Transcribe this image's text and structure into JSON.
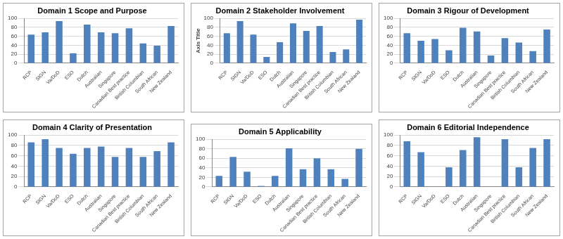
{
  "chart_data": [
    {
      "type": "bar",
      "title": "Domain 1 Scope and Purpose",
      "categories": [
        "RCP",
        "SIGN",
        "Va/DoD",
        "ESO",
        "Dutch",
        "Australian",
        "Singapore",
        "Canadian Best practice",
        "British Columbian",
        "South African",
        "New Zealand"
      ],
      "values": [
        64,
        69,
        94,
        22,
        86,
        69,
        67,
        78,
        44,
        39,
        83
      ],
      "color": "#4f81bd",
      "ylim": [
        0,
        100
      ],
      "yticks": [
        0,
        20,
        40,
        60,
        80,
        100
      ],
      "grid": true
    },
    {
      "type": "bar",
      "title": "Domain 2 Stakeholder Involvement",
      "ylabel": "Axis Title",
      "categories": [
        "RCP",
        "SIGN",
        "Va/DoD",
        "ESO",
        "Dutch",
        "Australian",
        "Singapore",
        "Canadian Best practice",
        "British Columbian",
        "South African",
        "New Zealand"
      ],
      "values": [
        67,
        94,
        64,
        14,
        47,
        89,
        72,
        83,
        25,
        31,
        97
      ],
      "color": "#4f81bd",
      "ylim": [
        0,
        100
      ],
      "yticks": [
        0,
        20,
        40,
        60,
        80,
        100
      ],
      "grid": true
    },
    {
      "type": "bar",
      "title": "Domain 3 Rigour of Development",
      "categories": [
        "RCP",
        "SIGN",
        "Va/DoD",
        "ESO",
        "Dutch",
        "Australian",
        "Singapore",
        "Canadian Best practice",
        "British Columbian",
        "South African",
        "New Zealand"
      ],
      "values": [
        67,
        50,
        54,
        29,
        79,
        71,
        17,
        56,
        46,
        27,
        75
      ],
      "color": "#4f81bd",
      "ylim": [
        0,
        100
      ],
      "yticks": [
        0,
        20,
        40,
        60,
        80,
        100
      ],
      "grid": true
    },
    {
      "type": "bar",
      "title": "Domain 4 Clarity of Presentation",
      "categories": [
        "RCP",
        "SIGN",
        "Va/DoD",
        "ESO",
        "Dutch",
        "Australian",
        "Singapore",
        "Canadian Best practice",
        "British Columbian",
        "South African",
        "New Zealand"
      ],
      "values": [
        86,
        92,
        75,
        64,
        75,
        78,
        58,
        75,
        58,
        69,
        86
      ],
      "color": "#4f81bd",
      "ylim": [
        0,
        100
      ],
      "yticks": [
        0,
        20,
        40,
        60,
        80,
        100
      ],
      "grid": true
    },
    {
      "type": "bar",
      "title": "Domain 5 Applicability",
      "categories": [
        "RCP",
        "SIGN",
        "Va/DoD",
        "ESO",
        "Dutch",
        "Australian",
        "Singapore",
        "Canadian Best practice",
        "British Columbian",
        "South African",
        "New Zealand"
      ],
      "values": [
        23,
        63,
        32,
        2,
        23,
        81,
        37,
        60,
        37,
        17,
        80
      ],
      "color": "#4f81bd",
      "ylim": [
        0,
        100
      ],
      "yticks": [
        0,
        20,
        40,
        60,
        80,
        100
      ],
      "grid": true
    },
    {
      "type": "bar",
      "title": "Domain 6 Editorial Independence",
      "categories": [
        "RCP",
        "SIGN",
        "Va/DoD",
        "ESO",
        "Dutch",
        "Australian",
        "Singapore",
        "Canadian Best practice",
        "British Columbian",
        "South African",
        "New Zealand"
      ],
      "values": [
        88,
        67,
        null,
        38,
        71,
        96,
        null,
        92,
        38,
        75,
        92
      ],
      "color": "#4f81bd",
      "ylim": [
        0,
        100
      ],
      "yticks": [
        0,
        20,
        40,
        60,
        80,
        100
      ],
      "grid": true
    }
  ]
}
